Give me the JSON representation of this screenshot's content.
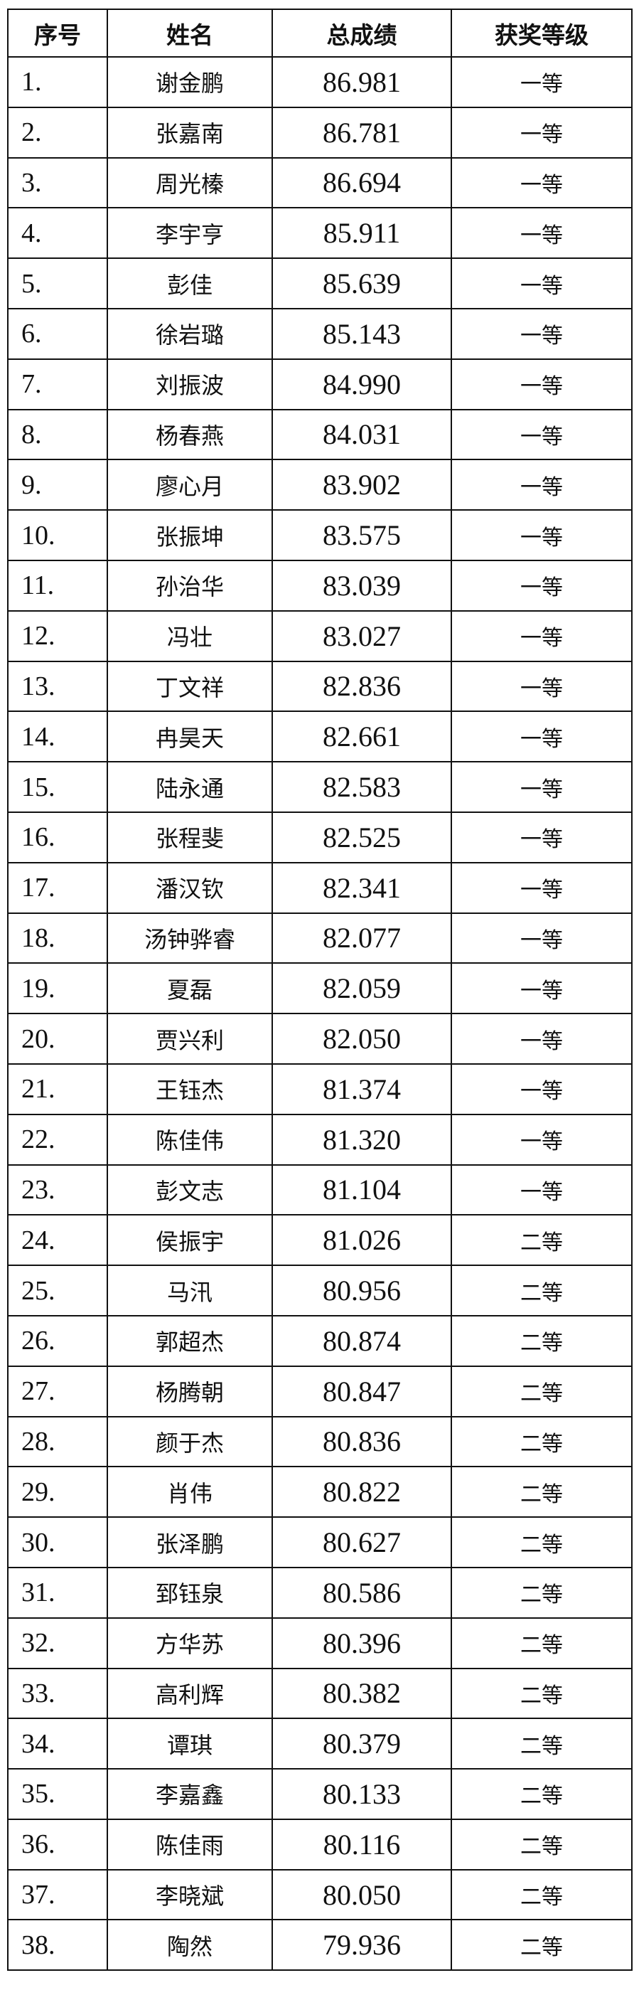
{
  "table": {
    "headers": [
      "序号",
      "姓名",
      "总成绩",
      "获奖等级"
    ],
    "rows": [
      [
        "1.",
        "谢金鹏",
        "86.981",
        "一等"
      ],
      [
        "2.",
        "张嘉南",
        "86.781",
        "一等"
      ],
      [
        "3.",
        "周光榛",
        "86.694",
        "一等"
      ],
      [
        "4.",
        "李宇亨",
        "85.911",
        "一等"
      ],
      [
        "5.",
        "彭佳",
        "85.639",
        "一等"
      ],
      [
        "6.",
        "徐岩璐",
        "85.143",
        "一等"
      ],
      [
        "7.",
        "刘振波",
        "84.990",
        "一等"
      ],
      [
        "8.",
        "杨春燕",
        "84.031",
        "一等"
      ],
      [
        "9.",
        "廖心月",
        "83.902",
        "一等"
      ],
      [
        "10.",
        "张振坤",
        "83.575",
        "一等"
      ],
      [
        "11.",
        "孙治华",
        "83.039",
        "一等"
      ],
      [
        "12.",
        "冯壮",
        "83.027",
        "一等"
      ],
      [
        "13.",
        "丁文祥",
        "82.836",
        "一等"
      ],
      [
        "14.",
        "冉昊天",
        "82.661",
        "一等"
      ],
      [
        "15.",
        "陆永通",
        "82.583",
        "一等"
      ],
      [
        "16.",
        "张程斐",
        "82.525",
        "一等"
      ],
      [
        "17.",
        "潘汉钦",
        "82.341",
        "一等"
      ],
      [
        "18.",
        "汤钟骅睿",
        "82.077",
        "一等"
      ],
      [
        "19.",
        "夏磊",
        "82.059",
        "一等"
      ],
      [
        "20.",
        "贾兴利",
        "82.050",
        "一等"
      ],
      [
        "21.",
        "王钰杰",
        "81.374",
        "一等"
      ],
      [
        "22.",
        "陈佳伟",
        "81.320",
        "一等"
      ],
      [
        "23.",
        "彭文志",
        "81.104",
        "一等"
      ],
      [
        "24.",
        "侯振宇",
        "81.026",
        "二等"
      ],
      [
        "25.",
        "马汛",
        "80.956",
        "二等"
      ],
      [
        "26.",
        "郭超杰",
        "80.874",
        "二等"
      ],
      [
        "27.",
        "杨腾朝",
        "80.847",
        "二等"
      ],
      [
        "28.",
        "颜于杰",
        "80.836",
        "二等"
      ],
      [
        "29.",
        "肖伟",
        "80.822",
        "二等"
      ],
      [
        "30.",
        "张泽鹏",
        "80.627",
        "二等"
      ],
      [
        "31.",
        "郅钰泉",
        "80.586",
        "二等"
      ],
      [
        "32.",
        "方华苏",
        "80.396",
        "二等"
      ],
      [
        "33.",
        "高利辉",
        "80.382",
        "二等"
      ],
      [
        "34.",
        "谭琪",
        "80.379",
        "二等"
      ],
      [
        "35.",
        "李嘉鑫",
        "80.133",
        "二等"
      ],
      [
        "36.",
        "陈佳雨",
        "80.116",
        "二等"
      ],
      [
        "37.",
        "李晓斌",
        "80.050",
        "二等"
      ],
      [
        "38.",
        "陶然",
        "79.936",
        "二等"
      ]
    ]
  }
}
